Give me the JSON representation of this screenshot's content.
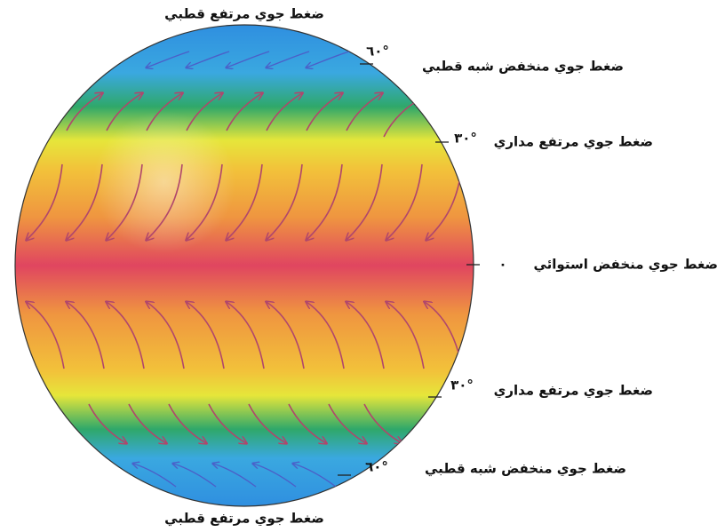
{
  "top_label": "ضغط جوي مرتفع قطبي",
  "bottom_label": "ضغط جوي مرتفع قطبي",
  "belts": [
    {
      "label": "ضغط جوي منخفض شبه قطبي",
      "degree": "٦٠°"
    },
    {
      "label": "ضغط جوي مرتفع مداري",
      "degree": "٣٠°"
    },
    {
      "label": "ضغط جوي منخفض استوائي",
      "degree": "٠"
    },
    {
      "label": "ضغط جوي مرتفع مداري",
      "degree": "٣٠°"
    },
    {
      "label": "ضغط جوي منخفض شبه قطبي",
      "degree": "٦٠°"
    }
  ]
}
